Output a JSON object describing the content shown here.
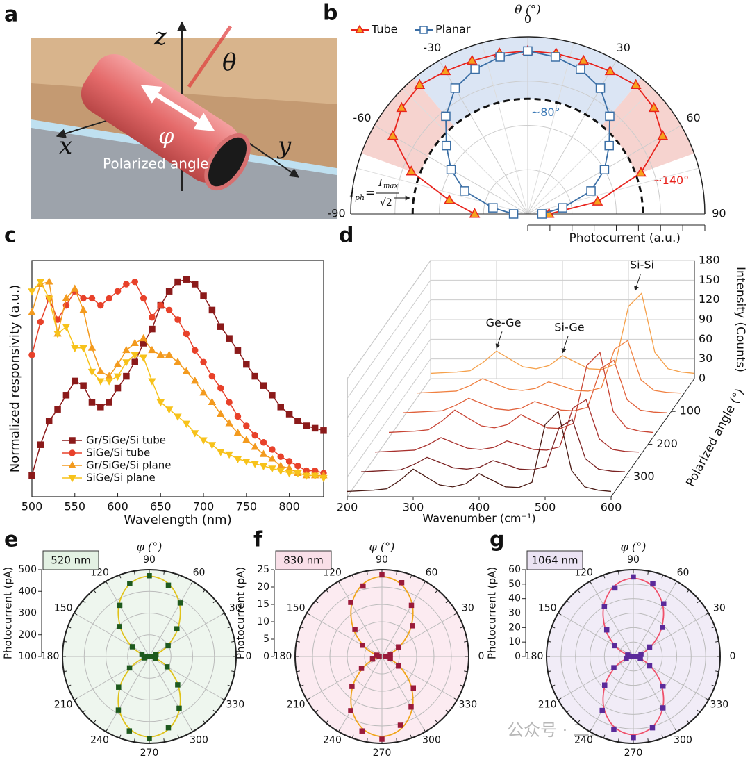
{
  "illustration": {
    "panel": "a",
    "labels": {
      "z": "z",
      "theta": "θ",
      "x": "x",
      "y": "y",
      "phi": "φ",
      "polarized": "Polarized angle"
    }
  },
  "watermark": "公众号 · 二维材料君",
  "chart_data": [
    {
      "panel": "b",
      "type": "polar_half",
      "angle_label": "θ (°)",
      "radial_label": "Photocurrent (a.u.)",
      "angles": [
        -90,
        -80,
        -70,
        -60,
        -50,
        -40,
        -30,
        -20,
        -10,
        0,
        10,
        20,
        30,
        40,
        50,
        60,
        70,
        80,
        90
      ],
      "thetaticks": [
        -90,
        -60,
        -30,
        0,
        30,
        60,
        90
      ],
      "rlim": [
        0,
        1
      ],
      "threshold": 0.65,
      "sectors": [
        {
          "from": -40,
          "to": 40,
          "color": "#dbe5f4",
          "label": "~80°",
          "label_color": "#3a78b5"
        },
        {
          "from": -70,
          "to": -40,
          "color": "#f6d3cf"
        },
        {
          "from": 40,
          "to": 70,
          "color": "#f6d3cf",
          "label": "~140°",
          "label_color": "#e8231d"
        }
      ],
      "formula": {
        "lhs": "I",
        "lhs_sub": "ph",
        "eq": "=",
        "num": "I",
        "num_sub": "max",
        "den": "√2"
      },
      "series": [
        {
          "name": "Tube",
          "color": "#e8231d",
          "marker": "triangle",
          "marker_fill": "#f6a21d",
          "values": [
            0.3,
            0.45,
            0.7,
            0.88,
            0.93,
            0.95,
            0.93,
            0.92,
            0.92,
            0.92,
            0.92,
            0.92,
            0.93,
            0.95,
            0.93,
            0.88,
            0.68,
            0.4,
            0.12
          ]
        },
        {
          "name": "Planar",
          "color": "#3a6ea5",
          "marker": "square",
          "marker_fill": "#ffffff",
          "values": [
            0.08,
            0.2,
            0.38,
            0.5,
            0.6,
            0.72,
            0.82,
            0.87,
            0.9,
            0.92,
            0.9,
            0.87,
            0.82,
            0.72,
            0.6,
            0.5,
            0.38,
            0.2,
            0.08
          ]
        }
      ]
    },
    {
      "panel": "c",
      "type": "line",
      "xlabel": "Wavelength (nm)",
      "ylabel": "Normalized responsivity (a.u.)",
      "x": [
        500,
        510,
        520,
        530,
        540,
        550,
        560,
        570,
        580,
        590,
        600,
        610,
        620,
        630,
        640,
        650,
        660,
        670,
        680,
        690,
        700,
        710,
        720,
        730,
        740,
        750,
        760,
        770,
        780,
        790,
        800,
        810,
        820,
        830,
        840
      ],
      "xlim": [
        500,
        840
      ],
      "xticks": [
        500,
        550,
        600,
        650,
        700,
        750,
        800
      ],
      "ylim": [
        0,
        1
      ],
      "series": [
        {
          "name": "Gr/SiGe/Si tube",
          "color": "#8b1a1a",
          "marker": "square",
          "values": [
            0.09,
            0.22,
            0.32,
            0.37,
            0.43,
            0.49,
            0.47,
            0.4,
            0.38,
            0.4,
            0.46,
            0.51,
            0.57,
            0.65,
            0.71,
            0.81,
            0.87,
            0.91,
            0.92,
            0.9,
            0.85,
            0.79,
            0.72,
            0.67,
            0.62,
            0.56,
            0.51,
            0.47,
            0.43,
            0.38,
            0.35,
            0.32,
            0.3,
            0.29,
            0.28
          ]
        },
        {
          "name": "SiGe/Si tube",
          "color": "#e8412a",
          "marker": "circle",
          "values": [
            0.6,
            0.74,
            0.84,
            0.75,
            0.81,
            0.87,
            0.84,
            0.84,
            0.81,
            0.84,
            0.87,
            0.9,
            0.91,
            0.84,
            0.76,
            0.81,
            0.79,
            0.75,
            0.69,
            0.62,
            0.57,
            0.51,
            0.46,
            0.4,
            0.34,
            0.3,
            0.26,
            0.23,
            0.2,
            0.17,
            0.15,
            0.13,
            0.11,
            0.11,
            0.1
          ]
        },
        {
          "name": "Gr/SiGe/Si plane",
          "color": "#f39a1e",
          "marker": "triangle",
          "values": [
            0.78,
            0.9,
            0.91,
            0.69,
            0.84,
            0.88,
            0.79,
            0.63,
            0.53,
            0.51,
            0.56,
            0.62,
            0.65,
            0.67,
            0.62,
            0.6,
            0.6,
            0.57,
            0.53,
            0.49,
            0.44,
            0.4,
            0.35,
            0.31,
            0.27,
            0.24,
            0.21,
            0.18,
            0.16,
            0.13,
            0.12,
            0.1,
            0.09,
            0.09,
            0.09
          ]
        },
        {
          "name": "SiGe/Si plane",
          "color": "#f7c21a",
          "marker": "triangle-down",
          "values": [
            0.87,
            0.91,
            0.84,
            0.69,
            0.72,
            0.63,
            0.63,
            0.53,
            0.49,
            0.49,
            0.51,
            0.57,
            0.6,
            0.59,
            0.49,
            0.4,
            0.37,
            0.34,
            0.31,
            0.27,
            0.24,
            0.22,
            0.19,
            0.18,
            0.16,
            0.15,
            0.14,
            0.13,
            0.12,
            0.11,
            0.1,
            0.1,
            0.09,
            0.09,
            0.08
          ]
        }
      ]
    },
    {
      "panel": "d",
      "type": "waterfall",
      "xlabel": "Wavenumber (cm⁻¹)",
      "zlabel": "Intensity (Counts)",
      "depth_label": "Polarized angle (°)",
      "x": [
        200,
        220,
        240,
        260,
        280,
        300,
        320,
        340,
        360,
        380,
        400,
        420,
        440,
        460,
        480,
        500,
        520,
        540,
        560,
        580,
        600
      ],
      "xlim": [
        200,
        600
      ],
      "xticks": [
        200,
        300,
        400,
        500,
        600
      ],
      "zlim": [
        0,
        180
      ],
      "zticks": [
        0,
        30,
        60,
        90,
        120,
        150,
        180
      ],
      "depthlim": [
        0,
        360
      ],
      "depthticks": [
        100,
        200,
        300
      ],
      "peaks": [
        {
          "label": "Ge-Ge",
          "x": 300
        },
        {
          "label": "Si-Ge",
          "x": 400
        },
        {
          "label": "Si-Si",
          "x": 510
        }
      ],
      "series": [
        {
          "angle": 0,
          "color": "#f5a04a",
          "values": [
            8,
            9,
            10,
            12,
            25,
            42,
            30,
            18,
            15,
            20,
            35,
            25,
            15,
            14,
            22,
            110,
            130,
            40,
            15,
            10,
            8
          ]
        },
        {
          "angle": 60,
          "color": "#f08040",
          "values": [
            8,
            9,
            10,
            11,
            19,
            30,
            22,
            14,
            12,
            15,
            25,
            19,
            12,
            11,
            16,
            75,
            88,
            28,
            12,
            9,
            8
          ]
        },
        {
          "angle": 120,
          "color": "#e0603a",
          "values": [
            8,
            9,
            10,
            11,
            19,
            30,
            22,
            14,
            12,
            15,
            25,
            19,
            12,
            11,
            16,
            75,
            88,
            28,
            12,
            9,
            8
          ]
        },
        {
          "angle": 180,
          "color": "#c84434",
          "values": [
            8,
            9,
            10,
            12,
            25,
            42,
            30,
            18,
            15,
            20,
            35,
            25,
            15,
            14,
            22,
            110,
            130,
            40,
            15,
            10,
            8
          ]
        },
        {
          "angle": 240,
          "color": "#a8302c",
          "values": [
            8,
            9,
            10,
            11,
            19,
            30,
            22,
            14,
            12,
            15,
            25,
            19,
            12,
            11,
            16,
            75,
            88,
            28,
            12,
            9,
            8
          ]
        },
        {
          "angle": 300,
          "color": "#7a2222",
          "values": [
            8,
            9,
            10,
            11,
            19,
            30,
            22,
            14,
            12,
            15,
            25,
            19,
            12,
            11,
            16,
            75,
            88,
            28,
            12,
            9,
            8
          ]
        },
        {
          "angle": 360,
          "color": "#4a1a14",
          "values": [
            8,
            9,
            10,
            12,
            25,
            42,
            30,
            18,
            15,
            20,
            35,
            25,
            15,
            14,
            22,
            110,
            130,
            40,
            15,
            10,
            8
          ]
        }
      ]
    },
    {
      "panel": "e",
      "type": "polar",
      "box_label": "520 nm",
      "box_color": "#e3f1e3",
      "bg": "#eef6ee",
      "angle_label": "φ (°)",
      "ylabel": "Photocurrent (pA)",
      "rlim": [
        100,
        500
      ],
      "rticks": [
        100,
        200,
        300,
        400,
        500
      ],
      "angleticks": [
        0,
        30,
        60,
        90,
        120,
        150,
        180,
        210,
        240,
        270,
        300,
        330
      ],
      "angles": [
        0,
        15,
        30,
        45,
        60,
        75,
        90,
        105,
        120,
        135,
        150,
        165,
        180,
        195,
        210,
        225,
        240,
        255,
        270,
        285,
        300,
        315,
        330,
        345
      ],
      "points": {
        "color": "#1e5a1e",
        "values": [
          108,
          132,
          200,
          280,
          385,
          440,
          472,
          448,
          372,
          295,
          190,
          135,
          110,
          125,
          205,
          300,
          385,
          455,
          478,
          440,
          375,
          285,
          195,
          128
        ]
      },
      "fit": {
        "color": "#e0c21a",
        "values": [
          105,
          129,
          196,
          288,
          379,
          446,
          470,
          446,
          379,
          288,
          196,
          129,
          105,
          129,
          196,
          288,
          379,
          446,
          470,
          446,
          379,
          288,
          196,
          129
        ]
      }
    },
    {
      "panel": "f",
      "type": "polar",
      "box_label": "830 nm",
      "box_color": "#f9dfe8",
      "bg": "#fcebf1",
      "angle_label": "φ (°)",
      "ylabel": "Photocurrent (pA)",
      "rlim": [
        0,
        25
      ],
      "rticks": [
        0,
        5,
        10,
        15,
        20,
        25
      ],
      "angleticks": [
        0,
        30,
        60,
        90,
        120,
        150,
        180,
        210,
        240,
        270,
        300,
        330
      ],
      "angles": [
        0,
        15,
        30,
        45,
        60,
        75,
        90,
        105,
        120,
        135,
        150,
        165,
        180,
        195,
        210,
        225,
        240,
        255,
        270,
        285,
        300,
        315,
        330,
        345
      ],
      "points": {
        "color": "#9b1a3a",
        "values": [
          1.0,
          2.5,
          5.5,
          12.5,
          17,
          22,
          23.5,
          21,
          18,
          11,
          6.5,
          1.5,
          0.8,
          2.8,
          6.8,
          12.2,
          18,
          22.2,
          23.8,
          20.5,
          16.8,
          12.8,
          5.5,
          2.5
        ]
      },
      "fit": {
        "color": "#f0a51a",
        "values": [
          0.5,
          2.0,
          6.1,
          11.8,
          17.4,
          21.5,
          23.0,
          21.5,
          17.4,
          11.8,
          6.1,
          2.0,
          0.5,
          2.0,
          6.1,
          11.8,
          17.4,
          21.5,
          23.0,
          21.5,
          17.4,
          11.8,
          6.1,
          2.0
        ]
      }
    },
    {
      "panel": "g",
      "type": "polar",
      "box_label": "1064 nm",
      "box_color": "#ebe3f3",
      "bg": "#f1ecf7",
      "angle_label": "φ (°)",
      "ylabel": "Photocurrent (pA)",
      "rlim": [
        0,
        60
      ],
      "rticks": [
        0,
        10,
        20,
        30,
        40,
        50,
        60
      ],
      "angleticks": [
        0,
        30,
        60,
        90,
        120,
        150,
        180,
        210,
        240,
        270,
        300,
        330
      ],
      "angles": [
        0,
        15,
        30,
        45,
        60,
        75,
        90,
        105,
        120,
        135,
        150,
        165,
        180,
        195,
        210,
        225,
        240,
        255,
        270,
        285,
        300,
        315,
        330,
        345
      ],
      "points": {
        "color": "#5a2a9a",
        "values": [
          2,
          5.5,
          13,
          28.5,
          42,
          52,
          55,
          49,
          40,
          26,
          15,
          4,
          1.5,
          5,
          15.5,
          28,
          43,
          52,
          56,
          51,
          41,
          29,
          13,
          5
        ]
      },
      "fit": {
        "color": "#f0506a",
        "values": [
          1,
          4.6,
          14.3,
          27.5,
          40.8,
          50.5,
          54,
          50.5,
          40.8,
          27.5,
          14.3,
          4.6,
          1,
          4.6,
          14.3,
          27.5,
          40.8,
          50.5,
          54,
          50.5,
          40.8,
          27.5,
          14.3,
          4.6
        ]
      }
    }
  ]
}
